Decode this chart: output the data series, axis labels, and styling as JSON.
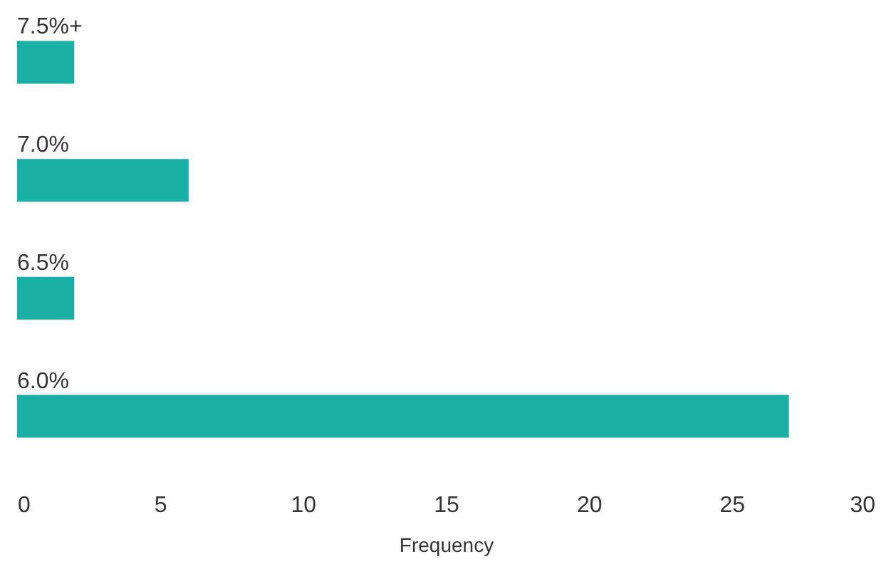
{
  "chart_data": {
    "type": "bar",
    "orientation": "horizontal",
    "categories": [
      "7.5%+",
      "7.0%",
      "6.5%",
      "6.0%"
    ],
    "values": [
      2,
      6,
      2,
      27
    ],
    "color": "#1aafa4",
    "xlabel": "Frequency",
    "xlim": [
      0,
      30
    ],
    "xticks": [
      0,
      5,
      10,
      15,
      20,
      25,
      30
    ],
    "grid": false
  }
}
